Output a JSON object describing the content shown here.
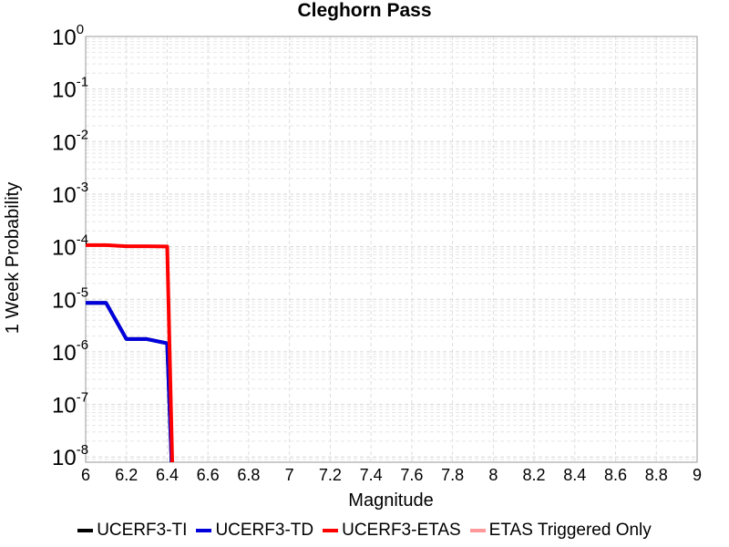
{
  "chart_data": {
    "type": "line",
    "title": "Cleghorn Pass",
    "xlabel": "Magnitude",
    "ylabel": "1 Week Probability",
    "xlim": [
      6,
      9
    ],
    "ylim_log10": [
      -8.1,
      0
    ],
    "yscale": "log",
    "x_ticks": [
      "6",
      "6.2",
      "6.4",
      "6.6",
      "6.8",
      "7",
      "7.2",
      "7.4",
      "7.6",
      "7.8",
      "8",
      "8.2",
      "8.4",
      "8.6",
      "8.8",
      "9"
    ],
    "y_ticks": [
      {
        "base": "10",
        "exp": "0"
      },
      {
        "base": "10",
        "exp": "-1"
      },
      {
        "base": "10",
        "exp": "-2"
      },
      {
        "base": "10",
        "exp": "-3"
      },
      {
        "base": "10",
        "exp": "-4"
      },
      {
        "base": "10",
        "exp": "-5"
      },
      {
        "base": "10",
        "exp": "-6"
      },
      {
        "base": "10",
        "exp": "-7"
      },
      {
        "base": "10",
        "exp": "-8"
      }
    ],
    "grid": true,
    "legend_position": "bottom",
    "series": [
      {
        "name": "UCERF3-TI",
        "color": "#000000",
        "x": [
          6.0,
          6.1,
          6.2,
          6.3,
          6.4,
          6.43
        ],
        "y": [
          8.5e-06,
          8.5e-06,
          1.75e-06,
          1.75e-06,
          1.45e-06,
          1e-09
        ]
      },
      {
        "name": "UCERF3-TD",
        "color": "#0000dd",
        "x": [
          6.0,
          6.1,
          6.2,
          6.3,
          6.4,
          6.43
        ],
        "y": [
          8.5e-06,
          8.5e-06,
          1.75e-06,
          1.75e-06,
          1.45e-06,
          1e-09
        ]
      },
      {
        "name": "UCERF3-ETAS",
        "color": "#ff0000",
        "x": [
          6.0,
          6.1,
          6.2,
          6.3,
          6.4,
          6.43
        ],
        "y": [
          0.000107,
          0.000107,
          0.000102,
          0.000102,
          0.000101,
          1e-09
        ]
      },
      {
        "name": "ETAS Triggered Only",
        "color": "#ff9999",
        "x": [],
        "y": []
      }
    ]
  }
}
